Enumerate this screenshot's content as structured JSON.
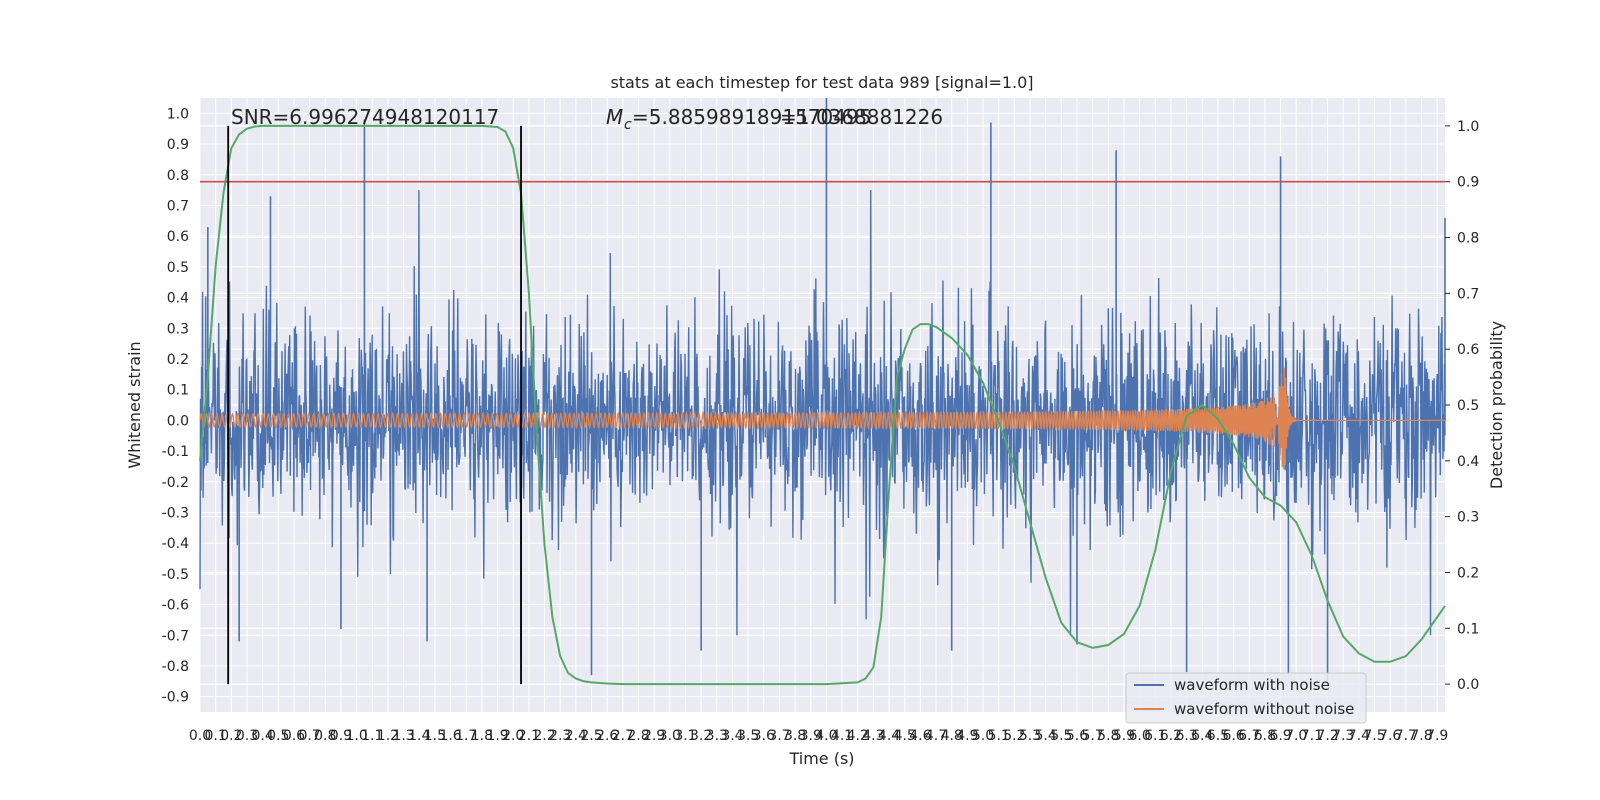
{
  "chart_data": {
    "type": "line",
    "title": "stats at each timestep for test data 989 [signal=1.0]",
    "annotations": {
      "snr_text": "SNR=6.996274948120117",
      "mc_text": "=5.8859891891570495",
      "mc_symbol": "M",
      "mc_subscript": "c",
      "overlap_text": "=1.0368881226"
    },
    "xlabel": "Time (s)",
    "ylabel_left": "Whitened strain",
    "ylabel_right": "Detection probability",
    "x_range": [
      0.0,
      7.95
    ],
    "x_ticks": [
      "0.0",
      "0.1",
      "0.2",
      "0.3",
      "0.4",
      "0.5",
      "0.6",
      "0.7",
      "0.8",
      "0.9",
      "1.0",
      "1.1",
      "1.2",
      "1.3",
      "1.4",
      "1.5",
      "1.6",
      "1.7",
      "1.8",
      "1.9",
      "2.0",
      "2.1",
      "2.2",
      "2.3",
      "2.4",
      "2.5",
      "2.6",
      "2.7",
      "2.8",
      "2.9",
      "3.0",
      "3.1",
      "3.2",
      "3.3",
      "3.4",
      "3.5",
      "3.6",
      "3.7",
      "3.8",
      "3.9",
      "4.0",
      "4.1",
      "4.2",
      "4.3",
      "4.4",
      "4.5",
      "4.6",
      "4.7",
      "4.8",
      "4.9",
      "5.0",
      "5.1",
      "5.2",
      "5.3",
      "5.4",
      "5.5",
      "5.6",
      "5.7",
      "5.8",
      "5.9",
      "6.0",
      "6.1",
      "6.2",
      "6.3",
      "6.4",
      "6.5",
      "6.6",
      "6.7",
      "6.8",
      "6.9",
      "7.0",
      "7.1",
      "7.2",
      "7.3",
      "7.4",
      "7.5",
      "7.6",
      "7.7",
      "7.8",
      "7.9"
    ],
    "y_left_range": [
      -0.95,
      1.05
    ],
    "y_left_ticks": [
      "1.0",
      "0.9",
      "0.8",
      "0.7",
      "0.6",
      "0.5",
      "0.4",
      "0.3",
      "0.2",
      "0.1",
      "0.0",
      "-0.1",
      "-0.2",
      "-0.3",
      "-0.4",
      "-0.5",
      "-0.6",
      "-0.7",
      "-0.8",
      "-0.9"
    ],
    "y_right_range": [
      -0.05,
      1.05
    ],
    "y_right_ticks": [
      "1.0",
      "0.9",
      "0.8",
      "0.7",
      "0.6",
      "0.5",
      "0.4",
      "0.3",
      "0.2",
      "0.1",
      "0.0"
    ],
    "grid": true,
    "legend_position": "lower right",
    "series": [
      {
        "name": "waveform with noise",
        "color": "#4c72b0",
        "axis": "left",
        "typical_amplitude": 0.3,
        "spikes": [
          {
            "x": 0.05,
            "y": 0.63
          },
          {
            "x": 0.18,
            "y": -0.58
          },
          {
            "x": 0.25,
            "y": -0.72
          },
          {
            "x": 0.45,
            "y": 0.73
          },
          {
            "x": 0.9,
            "y": -0.68
          },
          {
            "x": 1.05,
            "y": 0.98
          },
          {
            "x": 1.45,
            "y": -0.72
          },
          {
            "x": 2.05,
            "y": -0.77
          },
          {
            "x": 2.5,
            "y": -0.83
          },
          {
            "x": 3.2,
            "y": -0.75
          },
          {
            "x": 4.0,
            "y": 1.05
          },
          {
            "x": 4.8,
            "y": -0.75
          },
          {
            "x": 5.05,
            "y": 0.97
          },
          {
            "x": 5.6,
            "y": -0.73
          },
          {
            "x": 5.85,
            "y": 0.88
          },
          {
            "x": 6.3,
            "y": -0.82
          },
          {
            "x": 6.9,
            "y": 0.86
          },
          {
            "x": 6.95,
            "y": -0.83
          },
          {
            "x": 7.2,
            "y": -0.85
          },
          {
            "x": 7.95,
            "y": 0.66
          }
        ]
      },
      {
        "name": "waveform without noise",
        "color": "#dd8452",
        "axis": "left",
        "chirp_start_amplitude": 0.015,
        "chirp_peak_amplitude": 0.18,
        "merger_time": 6.93,
        "ringdown_end": 7.0
      },
      {
        "name": "",
        "color": "#55a868",
        "axis": "right",
        "x": [
          0.0,
          0.05,
          0.1,
          0.15,
          0.2,
          0.25,
          0.3,
          0.35,
          0.4,
          0.5,
          0.6,
          0.8,
          1.0,
          1.2,
          1.4,
          1.6,
          1.8,
          1.9,
          1.95,
          2.0,
          2.05,
          2.1,
          2.15,
          2.2,
          2.25,
          2.3,
          2.35,
          2.4,
          2.45,
          2.5,
          2.55,
          2.6,
          2.7,
          2.8,
          3.0,
          3.2,
          3.4,
          3.6,
          3.8,
          4.0,
          4.2,
          4.25,
          4.3,
          4.35,
          4.4,
          4.45,
          4.5,
          4.55,
          4.6,
          4.65,
          4.7,
          4.8,
          4.9,
          5.0,
          5.1,
          5.2,
          5.3,
          5.4,
          5.5,
          5.6,
          5.7,
          5.8,
          5.9,
          6.0,
          6.1,
          6.2,
          6.3,
          6.4,
          6.5,
          6.6,
          6.7,
          6.8,
          6.9,
          7.0,
          7.1,
          7.2,
          7.3,
          7.4,
          7.5,
          7.6,
          7.7,
          7.8,
          7.9,
          7.95
        ],
        "y": [
          0.4,
          0.55,
          0.75,
          0.88,
          0.96,
          0.985,
          0.995,
          0.999,
          1.0,
          1.0,
          1.0,
          1.0,
          1.0,
          1.0,
          1.0,
          1.0,
          1.0,
          0.998,
          0.99,
          0.96,
          0.88,
          0.7,
          0.45,
          0.25,
          0.12,
          0.05,
          0.02,
          0.01,
          0.005,
          0.003,
          0.002,
          0.001,
          0.0,
          0.0,
          0.0,
          0.0,
          0.0,
          0.0,
          0.0,
          0.0,
          0.003,
          0.01,
          0.03,
          0.12,
          0.35,
          0.55,
          0.6,
          0.635,
          0.645,
          0.645,
          0.64,
          0.62,
          0.59,
          0.54,
          0.47,
          0.39,
          0.29,
          0.19,
          0.11,
          0.075,
          0.065,
          0.07,
          0.09,
          0.14,
          0.24,
          0.38,
          0.48,
          0.5,
          0.475,
          0.43,
          0.37,
          0.335,
          0.32,
          0.29,
          0.23,
          0.15,
          0.085,
          0.055,
          0.04,
          0.04,
          0.05,
          0.08,
          0.12,
          0.14
        ]
      }
    ],
    "horizontal_lines": [
      {
        "axis": "right",
        "y": 0.9,
        "color": "#c44e52"
      }
    ],
    "vertical_lines": [
      {
        "x": 0.18,
        "color": "#000000"
      },
      {
        "x": 2.05,
        "color": "#000000"
      }
    ]
  }
}
